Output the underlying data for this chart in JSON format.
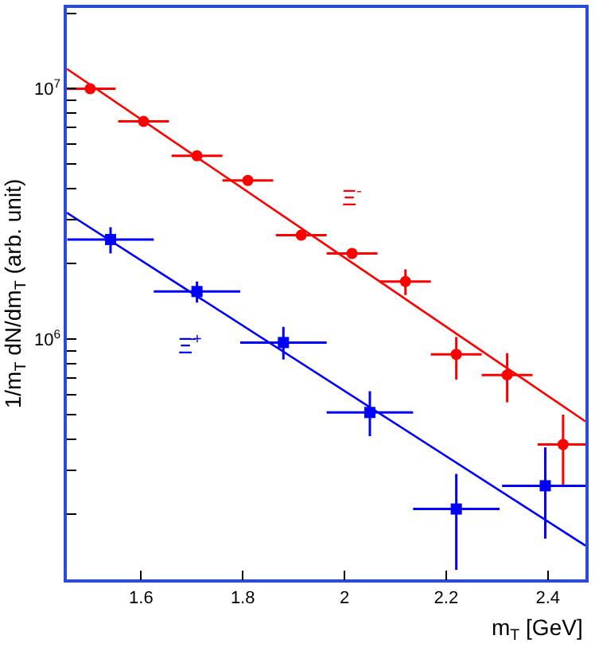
{
  "chart_data": {
    "type": "scatter",
    "xlabel": "m$_{T}$ [GeV]",
    "ylabel": "1/m$_{T}$ dN/dm$_{T}$ (arb. unit)",
    "log": "y",
    "grid": false,
    "legend": "left",
    "xlim": [
      1.454,
      2.474
    ],
    "xticks": [
      1.6,
      1.8,
      2,
      2.2,
      2.4
    ],
    "ylim": [
      110000,
      21000000
    ],
    "yticks": [
      {
        "value": 1000000,
        "label": "10$^{6}$"
      },
      {
        "value": 10000000,
        "label": "10$^{7}$"
      },
      {
        "value": 200000,
        "label": null
      },
      {
        "value": 300000,
        "label": null
      },
      {
        "value": 400000,
        "label": null
      },
      {
        "value": 500000,
        "label": null
      },
      {
        "value": 600000,
        "label": null
      },
      {
        "value": 700000,
        "label": null
      },
      {
        "value": 800000,
        "label": null
      },
      {
        "value": 900000,
        "label": null
      },
      {
        "value": 2000000,
        "label": null
      },
      {
        "value": 3000000,
        "label": null
      },
      {
        "value": 4000000,
        "label": null
      },
      {
        "value": 5000000,
        "label": null
      },
      {
        "value": 6000000,
        "label": null
      },
      {
        "value": 7000000,
        "label": null
      },
      {
        "value": 8000000,
        "label": null
      },
      {
        "value": 9000000,
        "label": null
      },
      {
        "value": 20000000,
        "label": null
      }
    ],
    "series": [
      {
        "name": "Ξ$^{-}$",
        "color": "#ff0000",
        "marker": "circle",
        "x": [
          1.5,
          1.605,
          1.71,
          1.81,
          1.915,
          2.015,
          2.12,
          2.22,
          2.32,
          2.43
        ],
        "values": [
          10000000,
          7400000,
          5400000,
          4300000,
          2600000,
          2200000,
          1700000,
          870000,
          720000,
          380000
        ],
        "errors": [
          null,
          null,
          null,
          null,
          null,
          null,
          [
            1500000,
            1900000
          ],
          [
            690000,
            1020000
          ],
          [
            560000,
            880000
          ],
          [
            260000,
            500000
          ]
        ],
        "xerrors": [
          0.05,
          0.05,
          0.05,
          0.05,
          0.05,
          0.05,
          0.05,
          0.05,
          0.05,
          0.05
        ]
      },
      {
        "name": "Ξ̄$^{+}$",
        "color": "#0000ff",
        "marker": "square",
        "x": [
          1.54,
          1.71,
          1.88,
          2.05,
          2.22,
          2.395
        ],
        "values": [
          2500000,
          1550000,
          970000,
          510000,
          210000,
          260000
        ],
        "errors": [
          [
            2200000,
            2800000
          ],
          [
            1400000,
            1700000
          ],
          [
            830000,
            1120000
          ],
          [
            410000,
            620000
          ],
          [
            120000,
            290000
          ],
          [
            160000,
            370000
          ]
        ],
        "xerrors": [
          0.085,
          0.085,
          0.085,
          0.085,
          0.085,
          0.085
        ]
      },
      {
        "type": "line",
        "color": "#ff0000",
        "marker": "none",
        "x": [
          1.454,
          2.474
        ],
        "values": [
          12000000,
          470000
        ]
      },
      {
        "type": "line",
        "color": "#0000ff",
        "marker": "none",
        "x": [
          1.454,
          2.474
        ],
        "values": [
          3200000,
          150000
        ]
      }
    ]
  }
}
